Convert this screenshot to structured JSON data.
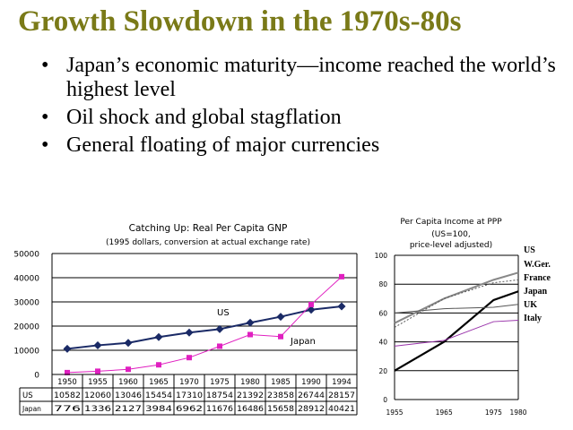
{
  "slide": {
    "title": "Growth Slowdown in the 1970s-80s",
    "bullets": [
      "Japan’s economic maturity—income reached the world’s highest level",
      "Oil shock and global stagflation",
      "General floating of major currencies"
    ]
  },
  "chart_data": [
    {
      "type": "line",
      "title": "Catching Up: Real Per Capita GNP",
      "subtitle": "(1995 dollars, conversion at actual exchange rate)",
      "categories": [
        "1950",
        "1955",
        "1960",
        "1965",
        "1970",
        "1975",
        "1980",
        "1985",
        "1990",
        "1994"
      ],
      "ylim": [
        0,
        50000
      ],
      "yticks": [
        "0",
        "10000",
        "20000",
        "30000",
        "40000",
        "50000"
      ],
      "grid": true,
      "series": [
        {
          "name": "US",
          "color": "#1a2a66",
          "marker": "diamond",
          "values": [
            10582,
            12060,
            13046,
            15454,
            17310,
            18754,
            21392,
            23858,
            26744,
            28157
          ]
        },
        {
          "name": "Japan",
          "color": "#e020c0",
          "marker": "square",
          "values": [
            776,
            1336,
            2127,
            3984,
            6962,
            11676,
            16486,
            15658,
            28912,
            40421
          ]
        }
      ],
      "annotations": [
        {
          "text": "US",
          "series": "US"
        },
        {
          "text": "Japan",
          "series": "Japan"
        }
      ],
      "table": {
        "rows": [
          {
            "label": "US",
            "values": [
              "10582",
              "12060",
              "13046",
              "15454",
              "17310",
              "18754",
              "21392",
              "23858",
              "26744",
              "28157"
            ]
          },
          {
            "label": "Japan",
            "values": [
              "776",
              "1336",
              "2127",
              "3984",
              "6962",
              "11676",
              "16486",
              "15658",
              "28912",
              "40421"
            ]
          }
        ]
      }
    },
    {
      "type": "line",
      "title": "Per Capita Income at PPP",
      "subtitle": "(US=100, price-level adjusted)",
      "x": [
        1955,
        1965,
        1975,
        1980
      ],
      "xticks": [
        "1955",
        "1965",
        "1975",
        "1980"
      ],
      "ylim": [
        0,
        100
      ],
      "yticks": [
        "0",
        "20",
        "40",
        "60",
        "80",
        "100"
      ],
      "grid": true,
      "legend_position": "right",
      "series": [
        {
          "name": "US",
          "color": "#000000",
          "style": "solid",
          "width": 1,
          "values": [
            null,
            null,
            null,
            null
          ]
        },
        {
          "name": "W.Ger.",
          "color": "#888888",
          "style": "solid",
          "width": 2,
          "values": [
            53,
            70,
            83,
            88
          ]
        },
        {
          "name": "France",
          "color": "#555555",
          "style": "dotted",
          "width": 1,
          "values": [
            50,
            70,
            81,
            83
          ]
        },
        {
          "name": "Japan",
          "color": "#000000",
          "style": "solid",
          "width": 2.2,
          "values": [
            20,
            40,
            69,
            75
          ]
        },
        {
          "name": "UK",
          "color": "#555555",
          "style": "solid",
          "width": 1,
          "values": [
            60,
            63,
            64,
            66
          ]
        },
        {
          "name": "Italy",
          "color": "#9933aa",
          "style": "solid",
          "width": 1,
          "values": [
            37,
            41,
            54,
            55
          ]
        }
      ]
    }
  ]
}
